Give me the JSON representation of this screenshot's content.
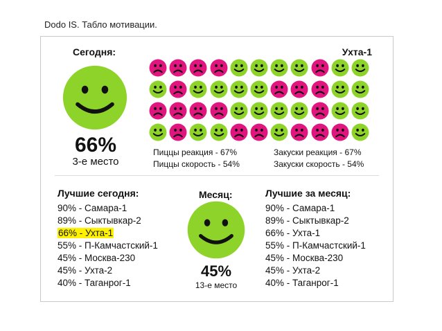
{
  "title": "Dodo IS. Табло мотивации.",
  "today": {
    "label": "Сегодня:",
    "branch": "Ухта-1",
    "percent": "66%",
    "place": "3-е место",
    "mood": "happy"
  },
  "colors": {
    "happy": "#8ed329",
    "sad": "#e0157d",
    "highlight": "#fff200"
  },
  "face_grid": [
    [
      "sad",
      "sad",
      "sad",
      "sad",
      "happy",
      "happy",
      "happy",
      "happy",
      "sad",
      "happy",
      "happy"
    ],
    [
      "happy",
      "sad",
      "happy",
      "happy",
      "happy",
      "happy",
      "sad",
      "sad",
      "sad",
      "happy",
      "happy"
    ],
    [
      "sad",
      "sad",
      "sad",
      "sad",
      "happy",
      "happy",
      "happy",
      "happy",
      "sad",
      "happy",
      "happy"
    ],
    [
      "happy",
      "sad",
      "happy",
      "happy",
      "sad",
      "sad",
      "happy",
      "sad",
      "sad",
      "sad",
      "happy"
    ]
  ],
  "stats": {
    "pizza_reaction": "Пиццы реакция  - 67%",
    "pizza_speed": "Пиццы скорость - 54%",
    "snack_reaction": "Закуски реакция  - 67%",
    "snack_speed": "Закуски скорость - 54%"
  },
  "best_today": {
    "title": "Лучшие сегодня:",
    "items": [
      "90% - Самара-1",
      "89% - Сыктывкар-2",
      "66% - Ухта-1",
      "55% - П-Камчастский-1",
      "45% - Москва-230",
      "45% - Ухта-2",
      "40% - Таганрог-1"
    ],
    "highlighted_index": 2
  },
  "month": {
    "label": "Месяц:",
    "percent": "45%",
    "place": "13-е место",
    "mood": "happy"
  },
  "best_month": {
    "title": "Лучшие за месяц:",
    "items": [
      "90% - Самара-1",
      "89% - Сыктывкар-2",
      "66% - Ухта-1",
      "55% - П-Камчастский-1",
      "45% - Москва-230",
      "45% - Ухта-2",
      "40% - Таганрог-1"
    ]
  }
}
